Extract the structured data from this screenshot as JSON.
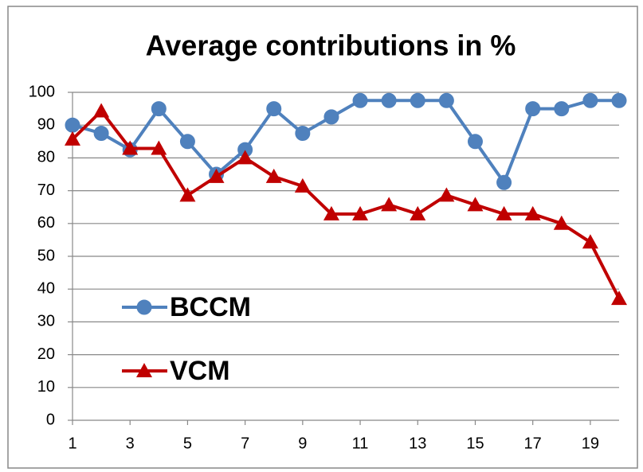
{
  "chart_data": {
    "type": "line",
    "title": "Average contributions in %",
    "x": [
      1,
      2,
      3,
      4,
      5,
      6,
      7,
      8,
      9,
      10,
      11,
      12,
      13,
      14,
      15,
      16,
      17,
      18,
      19,
      20
    ],
    "series": [
      {
        "name": "BCCM",
        "color": "#4f81bd",
        "marker": "circle",
        "values": [
          90,
          87.5,
          82.5,
          95,
          85,
          75,
          82.5,
          95,
          87.5,
          92.5,
          97.5,
          97.5,
          97.5,
          97.5,
          85,
          72.5,
          95,
          95,
          97.5,
          97.5
        ]
      },
      {
        "name": "VCM",
        "color": "#c00000",
        "marker": "triangle",
        "values": [
          85.7,
          94.3,
          82.9,
          82.9,
          68.6,
          74.3,
          80,
          74.3,
          71.4,
          62.9,
          62.9,
          65.7,
          62.9,
          68.6,
          65.7,
          62.9,
          62.9,
          60,
          54.3,
          37.1
        ]
      }
    ],
    "xlim": [
      1,
      20
    ],
    "xticks": [
      1,
      3,
      5,
      7,
      9,
      11,
      13,
      15,
      17,
      19
    ],
    "ylim": [
      0,
      100
    ],
    "yticks": [
      0,
      10,
      20,
      30,
      40,
      50,
      60,
      70,
      80,
      90,
      100
    ],
    "grid": true,
    "legend": "left"
  }
}
